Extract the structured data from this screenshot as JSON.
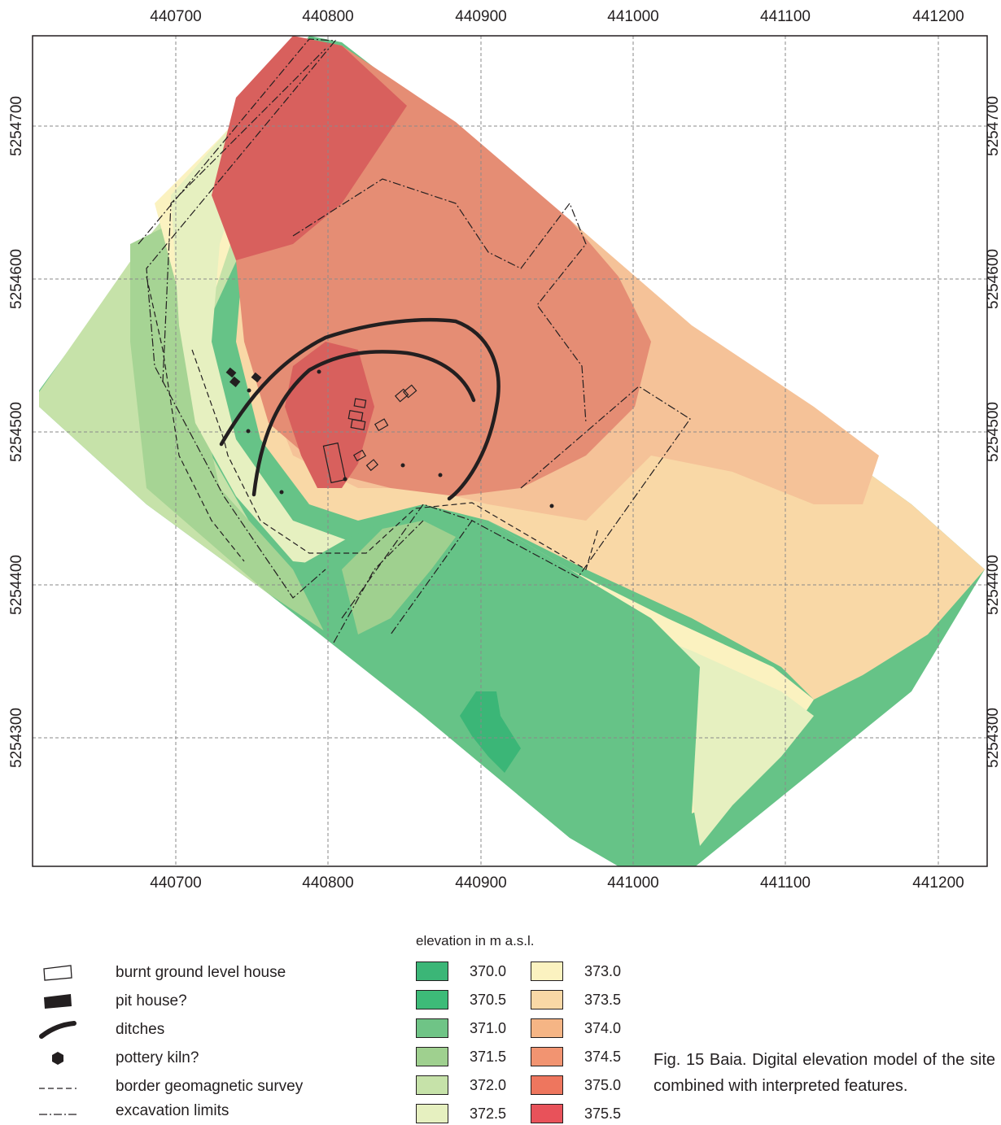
{
  "map": {
    "x_ticks": [
      "440700",
      "440800",
      "440900",
      "441000",
      "441100",
      "441200"
    ],
    "y_ticks": [
      "5254700",
      "5254600",
      "5254500",
      "5254400",
      "5254300"
    ],
    "x_range": [
      440610,
      441215
    ],
    "y_range": [
      5254180,
      5254760
    ]
  },
  "legend": {
    "items": [
      {
        "symbol": "burnt-house-symbol",
        "label": "burnt ground level house"
      },
      {
        "symbol": "pit-house-symbol",
        "label": "pit house?"
      },
      {
        "symbol": "ditch-symbol",
        "label": "ditches"
      },
      {
        "symbol": "kiln-symbol",
        "label": "pottery kiln?"
      },
      {
        "symbol": "survey-border-symbol",
        "label": "border geomagnetic survey"
      },
      {
        "symbol": "excavation-limit-symbol",
        "label": "excavation limits"
      }
    ]
  },
  "elevation_legend": {
    "title": "elevation in m a.s.l.",
    "classes": [
      {
        "value": "370.0",
        "color": "#3bb677"
      },
      {
        "value": "370.5",
        "color": "#3dbb78"
      },
      {
        "value": "371.0",
        "color": "#6fc486"
      },
      {
        "value": "371.5",
        "color": "#9fd08f"
      },
      {
        "value": "372.0",
        "color": "#c6e2a9"
      },
      {
        "value": "372.5",
        "color": "#e6f0c0"
      },
      {
        "value": "373.0",
        "color": "#fbf2c0"
      },
      {
        "value": "373.5",
        "color": "#f9d8a6"
      },
      {
        "value": "374.0",
        "color": "#f5b585"
      },
      {
        "value": "374.5",
        "color": "#f29471"
      },
      {
        "value": "375.0",
        "color": "#ee765e"
      },
      {
        "value": "375.5",
        "color": "#e8525a"
      }
    ]
  },
  "caption": "Fig. 15 Baia. Digital elevation model of the site combined with interpreted features."
}
